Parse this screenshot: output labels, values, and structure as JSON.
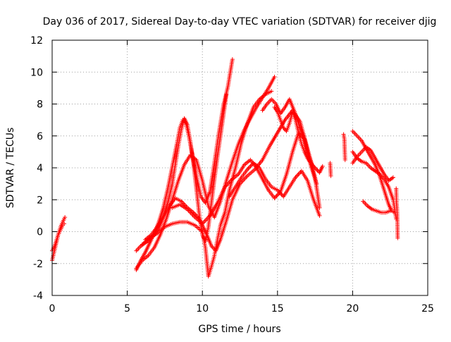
{
  "chart_data": {
    "type": "scatter",
    "title": "Day 036 of 2017, Sidereal Day-to-day VTEC variation (SDTVAR) for receiver djig",
    "xlabel": "GPS time / hours",
    "ylabel": "SDTVAR / TECUs",
    "xlim": [
      0,
      25
    ],
    "ylim": [
      -4,
      12
    ],
    "xticks": [
      0,
      5,
      10,
      15,
      20,
      25
    ],
    "yticks": [
      -4,
      -2,
      0,
      2,
      4,
      6,
      8,
      10,
      12
    ],
    "xtick_labels": [
      "0",
      "5",
      "10",
      "15",
      "20",
      "25"
    ],
    "ytick_labels": [
      "-4",
      "-2",
      "0",
      "2",
      "4",
      "6",
      "8",
      "10",
      "12"
    ],
    "grid": true,
    "legend": "none",
    "marker": "plus",
    "color": "#ff0000",
    "series": [
      {
        "x": [
          0.0,
          0.1,
          0.2,
          0.3,
          0.4,
          0.5,
          0.6,
          0.7,
          0.8,
          0.85
        ],
        "y": [
          -1.8,
          -1.4,
          -1.0,
          -0.6,
          -0.2,
          0.1,
          0.4,
          0.6,
          0.8,
          0.9
        ]
      },
      {
        "x": [
          0.0,
          0.1,
          0.2,
          0.3,
          0.4,
          0.5,
          0.6,
          0.7,
          0.8
        ],
        "y": [
          -1.2,
          -1.0,
          -0.8,
          -0.5,
          -0.2,
          0.0,
          0.2,
          0.4,
          0.5
        ]
      },
      {
        "x": [
          5.6,
          5.9,
          6.2,
          6.5,
          6.8,
          7.1,
          7.4,
          7.7,
          8.0,
          8.3,
          8.5,
          8.7,
          8.9,
          9.1,
          9.3,
          9.6,
          9.9,
          10.2,
          10.5,
          10.8,
          11.1,
          11.4,
          11.7,
          12.0
        ],
        "y": [
          -2.4,
          -1.8,
          -1.3,
          -0.7,
          -0.1,
          0.6,
          1.5,
          2.7,
          4.1,
          5.5,
          6.5,
          7.0,
          6.8,
          6.0,
          5.0,
          3.5,
          2.2,
          1.8,
          2.5,
          4.3,
          6.2,
          7.9,
          9.1,
          10.8
        ]
      },
      {
        "x": [
          5.6,
          5.9,
          6.2,
          6.5,
          6.8,
          7.1,
          7.4,
          7.7,
          8.0,
          8.2,
          8.4,
          8.6,
          8.8,
          9.0,
          9.2,
          9.4,
          9.6,
          9.8,
          10.0,
          10.2,
          10.4,
          10.6,
          10.8,
          11.0,
          11.2,
          11.4,
          11.6
        ],
        "y": [
          -1.2,
          -0.9,
          -0.7,
          -0.5,
          -0.2,
          0.2,
          0.9,
          1.8,
          3.0,
          4.2,
          5.4,
          6.4,
          7.1,
          6.7,
          5.6,
          4.3,
          2.7,
          1.0,
          -0.2,
          -0.6,
          0.3,
          1.8,
          3.3,
          4.7,
          6.0,
          7.3,
          8.6
        ]
      },
      {
        "x": [
          5.6,
          6.0,
          6.4,
          6.8,
          7.2,
          7.6,
          8.0,
          8.4,
          8.8,
          9.2,
          9.6,
          10.0,
          10.4,
          10.8,
          11.2,
          11.6,
          12.0,
          12.4,
          12.8,
          13.2,
          13.6,
          14.0,
          14.4,
          14.8
        ],
        "y": [
          -2.3,
          -1.8,
          -1.5,
          -1.0,
          -0.2,
          0.8,
          2.0,
          3.2,
          4.2,
          4.8,
          4.5,
          3.2,
          1.6,
          0.9,
          1.9,
          3.2,
          4.4,
          5.5,
          6.4,
          7.1,
          7.8,
          8.4,
          9.0,
          9.7
        ]
      },
      {
        "x": [
          6.0,
          6.5,
          7.0,
          7.5,
          8.0,
          8.5,
          9.0,
          9.5,
          10.0,
          10.2,
          10.4,
          10.6,
          10.8,
          11.0,
          11.2,
          11.5,
          11.8,
          12.2,
          12.6,
          13.0,
          13.4,
          13.8,
          14.2,
          14.6
        ],
        "y": [
          -0.8,
          -0.4,
          -0.1,
          0.3,
          0.5,
          0.6,
          0.6,
          0.4,
          0.0,
          -1.0,
          -2.8,
          -2.2,
          -1.5,
          -0.5,
          0.4,
          1.2,
          2.6,
          4.0,
          5.6,
          6.8,
          7.8,
          8.3,
          8.6,
          8.8
        ]
      },
      {
        "x": [
          6.2,
          6.6,
          7.0,
          7.4,
          7.8,
          8.2,
          8.6,
          9.0,
          9.4,
          9.8,
          10.0,
          10.3,
          10.6,
          10.9,
          11.2,
          11.6,
          12.0,
          12.5,
          13.0,
          13.5,
          14.0,
          14.5,
          15.0,
          15.5,
          16.0,
          16.5,
          17.0,
          17.5,
          17.8
        ],
        "y": [
          -0.5,
          -0.2,
          0.3,
          0.9,
          1.6,
          2.1,
          1.9,
          1.5,
          1.2,
          0.8,
          0.4,
          -0.2,
          -0.9,
          -1.2,
          -0.5,
          0.7,
          2.0,
          3.0,
          3.5,
          3.9,
          4.5,
          5.4,
          6.2,
          7.0,
          7.6,
          6.9,
          5.2,
          3.4,
          1.5
        ]
      },
      {
        "x": [
          8.0,
          8.5,
          9.0,
          9.5,
          10.0,
          10.5,
          11.0,
          11.5,
          12.0,
          12.4,
          12.8,
          13.2,
          13.6,
          14.0,
          14.4,
          14.8,
          15.2,
          15.6,
          16.0,
          16.4,
          16.8,
          17.2,
          17.6
        ],
        "y": [
          1.5,
          1.7,
          1.4,
          0.9,
          0.5,
          1.0,
          1.8,
          2.8,
          3.3,
          3.6,
          4.2,
          4.5,
          4.0,
          3.3,
          2.6,
          2.1,
          2.5,
          3.6,
          5.0,
          6.2,
          5.8,
          4.2,
          3.0
        ]
      },
      {
        "x": [
          11.8,
          12.2,
          12.6,
          13.0,
          13.4,
          13.8,
          14.2,
          14.6,
          15.0,
          15.4,
          15.8,
          16.2,
          16.6,
          17.0,
          17.4,
          17.8
        ],
        "y": [
          2.2,
          2.8,
          3.4,
          3.9,
          4.3,
          4.0,
          3.3,
          2.8,
          2.6,
          2.2,
          2.8,
          3.4,
          3.8,
          3.2,
          2.0,
          1.0
        ]
      },
      {
        "x": [
          14.8,
          15.0,
          15.2,
          15.4,
          15.6,
          15.8,
          16.0,
          16.2,
          16.4,
          16.6,
          16.8,
          17.0,
          17.2,
          17.4,
          17.6,
          17.8,
          18.0
        ],
        "y": [
          7.8,
          7.5,
          7.0,
          6.5,
          6.3,
          6.8,
          7.5,
          7.0,
          6.2,
          5.5,
          5.0,
          4.6,
          4.3,
          4.1,
          3.9,
          3.7,
          4.1
        ]
      },
      {
        "x": [
          14.0,
          14.3,
          14.6,
          14.9,
          15.2,
          15.5,
          15.8,
          16.1,
          16.4,
          16.7,
          17.0,
          17.3
        ],
        "y": [
          7.6,
          8.0,
          8.3,
          8.0,
          7.4,
          7.8,
          8.3,
          7.6,
          6.8,
          6.0,
          5.0,
          4.2
        ]
      },
      {
        "x": [
          18.5,
          18.55,
          19.4,
          19.45,
          19.5
        ],
        "y": [
          4.3,
          3.5,
          6.1,
          5.8,
          4.5
        ]
      },
      {
        "x": [
          20.0,
          20.3,
          20.6,
          20.9,
          21.2,
          21.5,
          21.8,
          22.1,
          22.4,
          22.6,
          22.8
        ],
        "y": [
          6.3,
          6.0,
          5.7,
          5.2,
          4.7,
          4.2,
          3.5,
          2.6,
          1.7,
          1.3,
          1.2
        ]
      },
      {
        "x": [
          20.0,
          20.3,
          20.6,
          20.9,
          21.2,
          21.5,
          21.8,
          22.1,
          22.4,
          22.7,
          22.9
        ],
        "y": [
          5.0,
          4.6,
          4.4,
          4.3,
          4.0,
          3.8,
          3.6,
          3.3,
          2.8,
          2.0,
          0.8
        ]
      },
      {
        "x": [
          20.0,
          20.3,
          20.6,
          20.9,
          21.2,
          21.5,
          21.8,
          22.1,
          22.4,
          22.7
        ],
        "y": [
          4.3,
          4.7,
          5.0,
          5.3,
          5.1,
          4.6,
          4.1,
          3.6,
          3.2,
          3.4
        ]
      },
      {
        "x": [
          20.7,
          21.0,
          21.3,
          21.6,
          21.9,
          22.2,
          22.5
        ],
        "y": [
          1.9,
          1.6,
          1.4,
          1.3,
          1.2,
          1.2,
          1.3
        ]
      },
      {
        "x": [
          22.9,
          22.92,
          22.95,
          22.97,
          23.0
        ],
        "y": [
          2.7,
          1.8,
          1.5,
          1.0,
          -0.4
        ]
      }
    ]
  }
}
